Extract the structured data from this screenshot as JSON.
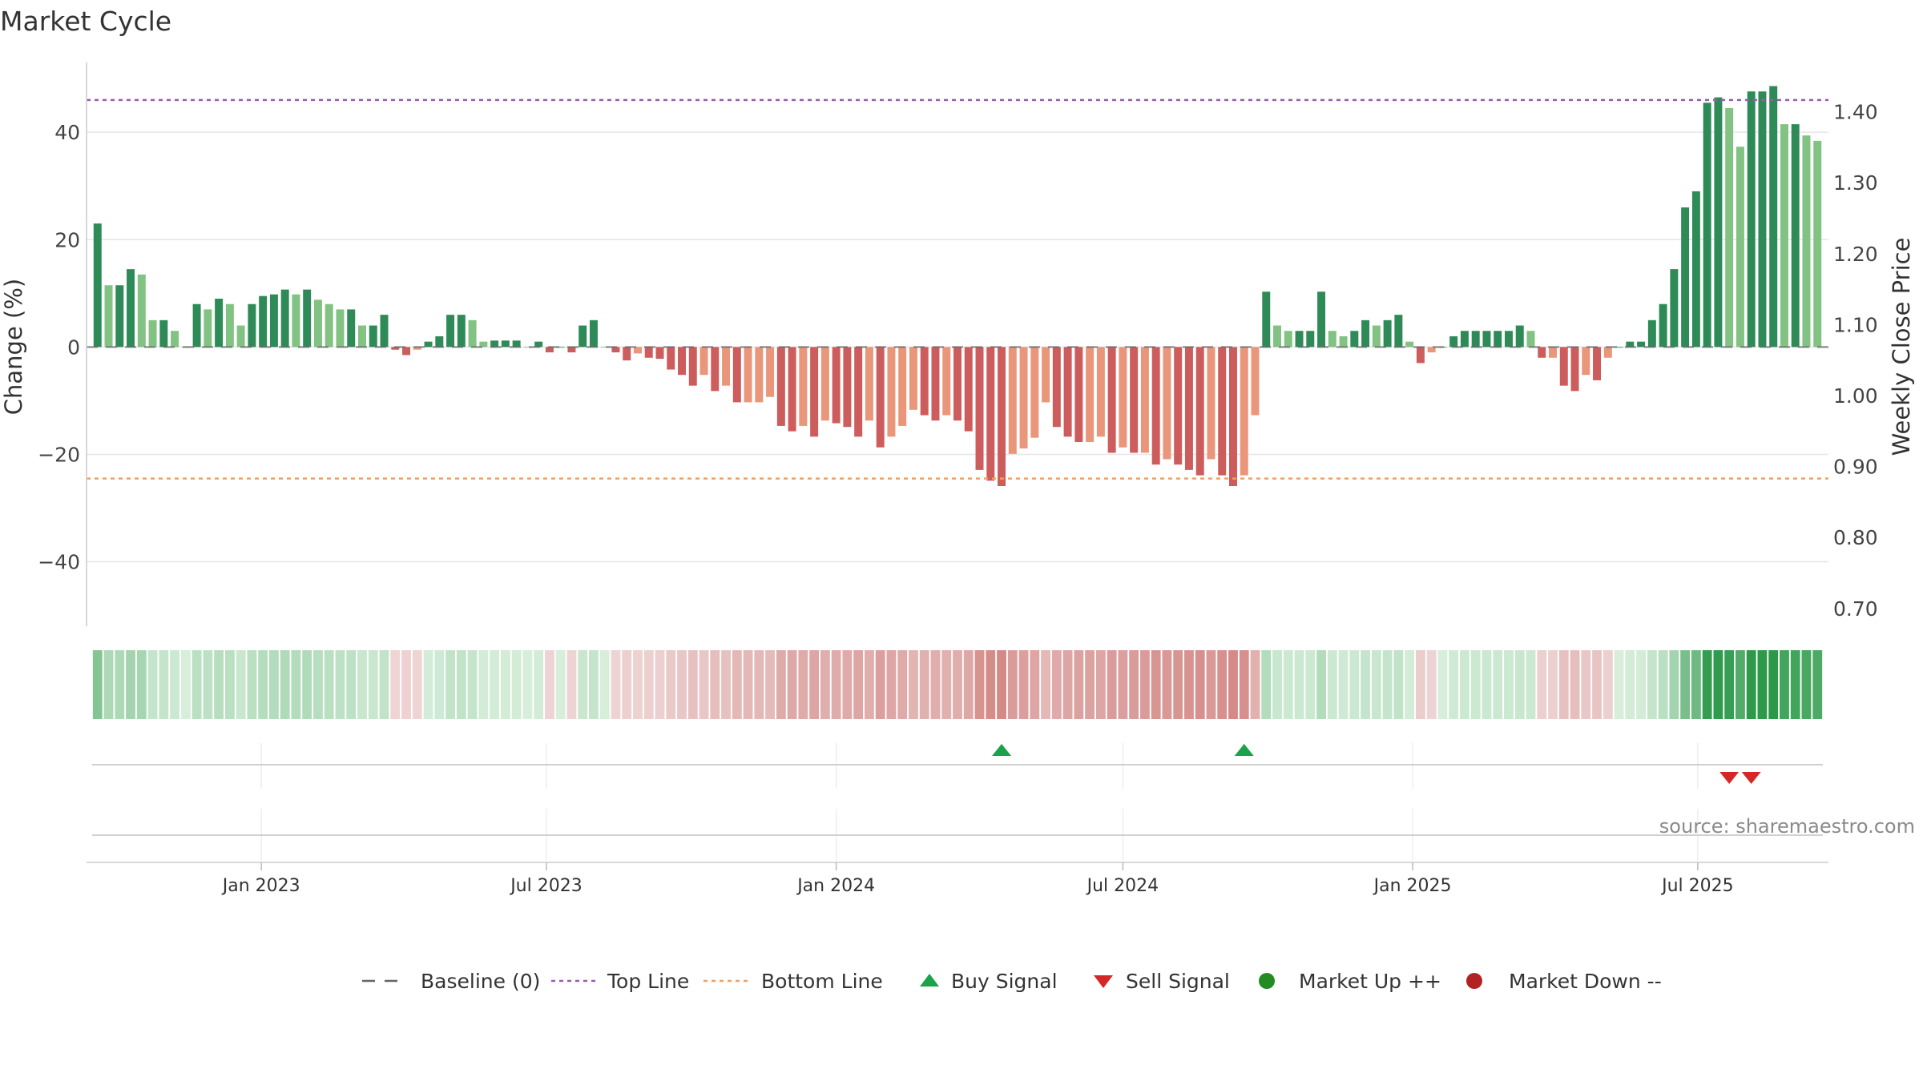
{
  "chart_data": {
    "type": "bar",
    "title": "Market Cycle",
    "ylabel": "Change (%)",
    "y2label": "Weekly Close Price",
    "ylim": [
      -52,
      53
    ],
    "yticks": [
      40,
      20,
      0,
      -20,
      -40
    ],
    "ytick_labels": [
      "40",
      "20",
      "0",
      "−20",
      "−40"
    ],
    "y2lim": [
      0.675,
      1.4695
    ],
    "y2ticks": [
      1.4,
      1.3,
      1.2,
      1.1,
      1.0,
      0.9,
      0.8,
      0.7
    ],
    "y2tick_labels": [
      "1.40",
      "1.30",
      "1.20",
      "1.10",
      "1.00",
      "0.90",
      "0.80",
      "0.70"
    ],
    "x_start": "2022-09-12",
    "x_end": "2025-09-22",
    "date_ticks": [
      {
        "date": "2023-01-01",
        "label": "Jan 2023"
      },
      {
        "date": "2023-07-01",
        "label": "Jul 2023"
      },
      {
        "date": "2024-01-01",
        "label": "Jan 2024"
      },
      {
        "date": "2024-07-01",
        "label": "Jul 2024"
      },
      {
        "date": "2025-01-01",
        "label": "Jan 2025"
      },
      {
        "date": "2025-07-01",
        "label": "Jul 2025"
      }
    ],
    "top_line": 46,
    "bottom_line": -24.5,
    "baseline": 0,
    "grid": true,
    "legend_position": "bottom-center",
    "colors": {
      "up_strong": "#2e8b57",
      "up_light": "#82c282",
      "down_strong": "#cd5c5c",
      "down_light": "#e9967a",
      "top_line": "#9b59b6",
      "bottom_line": "#f0a060",
      "buy": "#1aa34a",
      "sell": "#d62728",
      "market_up": "#228b22",
      "market_down": "#b22222"
    },
    "weeks": [
      "2022-09-19",
      "2022-09-26",
      "2022-10-03",
      "2022-10-10",
      "2022-10-17",
      "2022-10-24",
      "2022-10-31",
      "2022-11-07",
      "2022-11-14",
      "2022-11-21",
      "2022-11-28",
      "2022-12-05",
      "2022-12-12",
      "2022-12-19",
      "2022-12-26",
      "2023-01-02",
      "2023-01-09",
      "2023-01-16",
      "2023-01-23",
      "2023-01-30",
      "2023-02-06",
      "2023-02-13",
      "2023-02-20",
      "2023-02-27",
      "2023-03-06",
      "2023-03-13",
      "2023-03-20",
      "2023-03-27",
      "2023-04-03",
      "2023-04-10",
      "2023-04-17",
      "2023-04-24",
      "2023-05-01",
      "2023-05-08",
      "2023-05-15",
      "2023-05-22",
      "2023-05-29",
      "2023-06-05",
      "2023-06-12",
      "2023-06-19",
      "2023-06-26",
      "2023-07-03",
      "2023-07-10",
      "2023-07-17",
      "2023-07-24",
      "2023-07-31",
      "2023-08-07",
      "2023-08-14",
      "2023-08-21",
      "2023-08-28",
      "2023-09-04",
      "2023-09-11",
      "2023-09-18",
      "2023-09-25",
      "2023-10-02",
      "2023-10-09",
      "2023-10-16",
      "2023-10-23",
      "2023-10-30",
      "2023-11-06",
      "2023-11-13",
      "2023-11-20",
      "2023-11-27",
      "2023-12-04",
      "2023-12-11",
      "2023-12-18",
      "2023-12-25",
      "2024-01-01",
      "2024-01-08",
      "2024-01-15",
      "2024-01-22",
      "2024-01-29",
      "2024-02-05",
      "2024-02-12",
      "2024-02-19",
      "2024-02-26",
      "2024-03-04",
      "2024-03-11",
      "2024-03-18",
      "2024-03-25",
      "2024-04-01",
      "2024-04-08",
      "2024-04-15",
      "2024-04-22",
      "2024-04-29",
      "2024-05-06",
      "2024-05-13",
      "2024-05-20",
      "2024-05-27",
      "2024-06-03",
      "2024-06-10",
      "2024-06-17",
      "2024-06-24",
      "2024-07-01",
      "2024-07-08",
      "2024-07-15",
      "2024-07-22",
      "2024-07-29",
      "2024-08-05",
      "2024-08-12",
      "2024-08-19",
      "2024-08-26",
      "2024-09-02",
      "2024-09-09",
      "2024-09-16",
      "2024-09-23",
      "2024-09-30",
      "2024-10-07",
      "2024-10-14",
      "2024-10-21",
      "2024-10-28",
      "2024-11-04",
      "2024-11-11",
      "2024-11-18",
      "2024-11-25",
      "2024-12-02",
      "2024-12-09",
      "2024-12-16",
      "2024-12-23",
      "2024-12-30",
      "2025-01-06",
      "2025-01-13",
      "2025-01-20",
      "2025-01-27",
      "2025-02-03",
      "2025-02-10",
      "2025-02-17",
      "2025-02-24",
      "2025-03-03",
      "2025-03-10",
      "2025-03-17",
      "2025-03-24",
      "2025-03-31",
      "2025-04-07",
      "2025-04-14",
      "2025-04-21",
      "2025-04-28",
      "2025-05-05",
      "2025-05-12",
      "2025-05-19",
      "2025-05-26",
      "2025-06-02",
      "2025-06-09",
      "2025-06-16",
      "2025-06-23",
      "2025-06-30",
      "2025-07-07",
      "2025-07-14",
      "2025-07-21",
      "2025-07-28",
      "2025-08-04",
      "2025-08-11",
      "2025-08-18",
      "2025-08-25",
      "2025-09-01",
      "2025-09-08",
      "2025-09-15"
    ],
    "values": [
      23,
      11.5,
      11.5,
      14.5,
      13.5,
      5,
      5,
      3,
      0,
      8,
      7,
      9,
      8,
      4,
      8,
      9.5,
      9.8,
      10.7,
      9.8,
      10.7,
      8.8,
      8,
      7,
      7,
      4,
      4,
      6,
      -0.5,
      -1.5,
      -0.5,
      1,
      2,
      6,
      6,
      5,
      1,
      1.2,
      1.2,
      1.2,
      0,
      1,
      -1,
      0,
      -1,
      4,
      5,
      0,
      -1,
      -2.5,
      -1.2,
      -2,
      -2.2,
      -4.2,
      -5.2,
      -7.2,
      -5.2,
      -8.2,
      -7.2,
      -10.3,
      -10.3,
      -10.3,
      -9.3,
      -14.7,
      -15.7,
      -14.7,
      -16.7,
      -13.7,
      -14.2,
      -14.9,
      -16.7,
      -13.7,
      -18.7,
      -16.7,
      -14.7,
      -11.7,
      -12.7,
      -13.7,
      -12.7,
      -13.7,
      -15.7,
      -22.9,
      -24.9,
      -25.9,
      -19.9,
      -18.9,
      -16.9,
      -10.3,
      -14.9,
      -16.7,
      -17.7,
      -17.7,
      -16.7,
      -19.7,
      -18.7,
      -19.7,
      -19.7,
      -21.9,
      -20.9,
      -21.9,
      -22.9,
      -23.9,
      -20.9,
      -23.9,
      -25.9,
      -23.9,
      -12.7,
      10.3,
      4,
      3,
      3,
      3,
      10.3,
      3,
      2,
      3,
      5,
      4,
      5,
      6,
      1,
      -3,
      -1,
      0,
      2,
      3,
      3,
      3,
      3,
      3,
      4,
      3,
      -2,
      -2,
      -7.2,
      -8.2,
      -5.2,
      -6.2,
      -2,
      0,
      1,
      1,
      5,
      8,
      14.5,
      26,
      29,
      45.5,
      46.5,
      44.5,
      37.3,
      47.6,
      47.6,
      48.6,
      41.5,
      41.5,
      39.4,
      38.4
    ],
    "buy_signals": [
      "2024-04-15",
      "2024-09-16"
    ],
    "sell_signals": [
      "2025-07-21",
      "2025-08-04"
    ],
    "legend": [
      {
        "key": "baseline",
        "label": "Baseline (0)"
      },
      {
        "key": "top",
        "label": "Top Line"
      },
      {
        "key": "bottom",
        "label": "Bottom Line"
      },
      {
        "key": "buy",
        "label": "Buy Signal"
      },
      {
        "key": "sell",
        "label": "Sell Signal"
      },
      {
        "key": "mup",
        "label": "Market Up ++"
      },
      {
        "key": "mdown",
        "label": "Market Down --"
      }
    ],
    "source": "source: sharemaestro.com"
  }
}
